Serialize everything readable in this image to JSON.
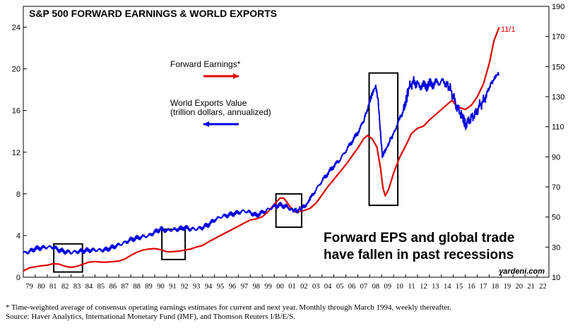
{
  "chart_data": {
    "type": "line",
    "title": "S&P 500 FORWARD EARNINGS & WORLD EXPORTS",
    "x_ticks": [
      "79",
      "80",
      "81",
      "82",
      "83",
      "84",
      "85",
      "86",
      "87",
      "88",
      "89",
      "90",
      "91",
      "92",
      "93",
      "94",
      "95",
      "96",
      "97",
      "98",
      "99",
      "00",
      "01",
      "02",
      "03",
      "04",
      "05",
      "06",
      "07",
      "08",
      "09",
      "10",
      "11",
      "12",
      "13",
      "14",
      "15",
      "16",
      "17",
      "18",
      "19",
      "20",
      "21",
      "22"
    ],
    "xlim": [
      1979,
      2023
    ],
    "left_axis": {
      "ylim": [
        0,
        26
      ],
      "ticks": [
        0,
        4,
        8,
        12,
        16,
        20,
        24
      ]
    },
    "right_axis": {
      "ylim": [
        10,
        190
      ],
      "ticks": [
        10,
        30,
        50,
        70,
        90,
        110,
        130,
        150,
        170,
        190
      ]
    },
    "series": [
      {
        "name": "Forward Earnings*",
        "axis": "left",
        "color": "#e00000",
        "points": [
          [
            1979.0,
            0.6
          ],
          [
            1979.5,
            0.9
          ],
          [
            1980.0,
            1.0
          ],
          [
            1980.5,
            1.1
          ],
          [
            1981.0,
            1.15
          ],
          [
            1981.5,
            1.3
          ],
          [
            1982.0,
            1.25
          ],
          [
            1982.5,
            1.05
          ],
          [
            1983.0,
            0.95
          ],
          [
            1983.5,
            1.05
          ],
          [
            1984.0,
            1.25
          ],
          [
            1984.5,
            1.45
          ],
          [
            1985.0,
            1.5
          ],
          [
            1985.5,
            1.45
          ],
          [
            1986.0,
            1.45
          ],
          [
            1986.5,
            1.5
          ],
          [
            1987.0,
            1.55
          ],
          [
            1987.5,
            1.75
          ],
          [
            1988.0,
            2.1
          ],
          [
            1988.5,
            2.4
          ],
          [
            1989.0,
            2.6
          ],
          [
            1989.5,
            2.7
          ],
          [
            1990.0,
            2.75
          ],
          [
            1990.5,
            2.65
          ],
          [
            1991.0,
            2.45
          ],
          [
            1991.5,
            2.45
          ],
          [
            1992.0,
            2.5
          ],
          [
            1992.5,
            2.6
          ],
          [
            1993.0,
            2.7
          ],
          [
            1993.5,
            2.9
          ],
          [
            1994.0,
            3.05
          ],
          [
            1994.5,
            3.4
          ],
          [
            1995.0,
            3.7
          ],
          [
            1995.5,
            4.0
          ],
          [
            1996.0,
            4.3
          ],
          [
            1996.5,
            4.6
          ],
          [
            1997.0,
            4.9
          ],
          [
            1997.5,
            5.2
          ],
          [
            1998.0,
            5.5
          ],
          [
            1998.5,
            5.6
          ],
          [
            1999.0,
            5.8
          ],
          [
            1999.5,
            6.3
          ],
          [
            2000.0,
            7.0
          ],
          [
            2000.5,
            7.6
          ],
          [
            2000.8,
            7.6
          ],
          [
            2001.0,
            7.3
          ],
          [
            2001.5,
            6.5
          ],
          [
            2001.9,
            6.2
          ],
          [
            2002.2,
            6.35
          ],
          [
            2002.5,
            6.4
          ],
          [
            2003.0,
            6.6
          ],
          [
            2003.5,
            7.1
          ],
          [
            2004.0,
            7.9
          ],
          [
            2004.5,
            8.7
          ],
          [
            2005.0,
            9.4
          ],
          [
            2005.5,
            10.1
          ],
          [
            2006.0,
            10.8
          ],
          [
            2006.5,
            11.6
          ],
          [
            2007.0,
            12.4
          ],
          [
            2007.5,
            13.3
          ],
          [
            2007.8,
            13.6
          ],
          [
            2008.2,
            13.3
          ],
          [
            2008.6,
            12.5
          ],
          [
            2008.9,
            10.5
          ],
          [
            2009.1,
            8.6
          ],
          [
            2009.3,
            7.8
          ],
          [
            2009.6,
            8.5
          ],
          [
            2010.0,
            10.0
          ],
          [
            2010.5,
            11.5
          ],
          [
            2011.0,
            12.6
          ],
          [
            2011.5,
            13.8
          ],
          [
            2012.0,
            14.3
          ],
          [
            2012.5,
            14.5
          ],
          [
            2013.0,
            15.1
          ],
          [
            2013.5,
            15.6
          ],
          [
            2014.0,
            16.1
          ],
          [
            2014.5,
            16.6
          ],
          [
            2014.9,
            17.0
          ],
          [
            2015.2,
            16.5
          ],
          [
            2015.5,
            16.3
          ],
          [
            2016.0,
            16.1
          ],
          [
            2016.5,
            16.5
          ],
          [
            2017.0,
            17.3
          ],
          [
            2017.5,
            18.5
          ],
          [
            2018.0,
            20.5
          ],
          [
            2018.4,
            22.7
          ],
          [
            2018.84,
            24.0
          ]
        ]
      },
      {
        "name": "World Exports Value",
        "axis": "right",
        "color": "#0000e0",
        "points": [
          [
            1979.0,
            26
          ],
          [
            1979.5,
            27
          ],
          [
            1980.0,
            29
          ],
          [
            1980.5,
            29.5
          ],
          [
            1981.0,
            30
          ],
          [
            1981.5,
            30
          ],
          [
            1982.0,
            28
          ],
          [
            1982.5,
            27
          ],
          [
            1983.0,
            26.5
          ],
          [
            1983.5,
            27
          ],
          [
            1984.0,
            27.5
          ],
          [
            1984.5,
            28
          ],
          [
            1985.0,
            28
          ],
          [
            1985.5,
            28
          ],
          [
            1986.0,
            28.5
          ],
          [
            1986.5,
            30
          ],
          [
            1987.0,
            31.5
          ],
          [
            1987.5,
            33
          ],
          [
            1988.0,
            35
          ],
          [
            1988.5,
            36
          ],
          [
            1989.0,
            37
          ],
          [
            1989.5,
            37.5
          ],
          [
            1990.0,
            40
          ],
          [
            1990.5,
            42
          ],
          [
            1991.0,
            41
          ],
          [
            1991.5,
            41.5
          ],
          [
            1992.0,
            42
          ],
          [
            1992.5,
            43
          ],
          [
            1993.0,
            42
          ],
          [
            1993.5,
            42
          ],
          [
            1994.0,
            43
          ],
          [
            1994.5,
            45
          ],
          [
            1995.0,
            48
          ],
          [
            1995.5,
            50
          ],
          [
            1996.0,
            51
          ],
          [
            1996.5,
            52
          ],
          [
            1997.0,
            53
          ],
          [
            1997.5,
            54
          ],
          [
            1998.0,
            53
          ],
          [
            1998.5,
            51
          ],
          [
            1999.0,
            53
          ],
          [
            1999.5,
            55
          ],
          [
            2000.0,
            57
          ],
          [
            2000.5,
            58
          ],
          [
            2001.0,
            57
          ],
          [
            2001.5,
            55
          ],
          [
            2001.9,
            54
          ],
          [
            2002.3,
            56
          ],
          [
            2002.7,
            58
          ],
          [
            2003.0,
            62
          ],
          [
            2003.5,
            68
          ],
          [
            2004.0,
            74
          ],
          [
            2004.5,
            79
          ],
          [
            2005.0,
            84
          ],
          [
            2005.5,
            88
          ],
          [
            2006.0,
            94
          ],
          [
            2006.5,
            100
          ],
          [
            2007.0,
            106
          ],
          [
            2007.5,
            114
          ],
          [
            2007.9,
            124
          ],
          [
            2008.2,
            132
          ],
          [
            2008.5,
            137
          ],
          [
            2008.7,
            128
          ],
          [
            2008.9,
            106
          ],
          [
            2009.05,
            91
          ],
          [
            2009.3,
            94
          ],
          [
            2009.6,
            99
          ],
          [
            2010.0,
            106
          ],
          [
            2010.5,
            115
          ],
          [
            2010.9,
            122
          ],
          [
            2011.2,
            134
          ],
          [
            2011.6,
            140
          ],
          [
            2012.0,
            138
          ],
          [
            2012.5,
            137
          ],
          [
            2013.0,
            138
          ],
          [
            2013.5,
            139
          ],
          [
            2014.0,
            140
          ],
          [
            2014.5,
            139
          ],
          [
            2014.9,
            132
          ],
          [
            2015.3,
            123
          ],
          [
            2015.7,
            118
          ],
          [
            2016.0,
            111
          ],
          [
            2016.4,
            115
          ],
          [
            2016.8,
            118
          ],
          [
            2017.2,
            124
          ],
          [
            2017.6,
            128
          ],
          [
            2018.0,
            136
          ],
          [
            2018.4,
            142
          ],
          [
            2018.84,
            145
          ]
        ]
      }
    ],
    "legend": [
      {
        "label": "Forward Earnings*",
        "color": "#e00000",
        "arrow": "right"
      },
      {
        "label": "World Exports Value",
        "sublabel": "(trillion dollars, annualized)",
        "color": "#0000e0",
        "arrow": "left"
      }
    ],
    "annotations": {
      "date_label": "11/1",
      "headline_line1": "Forward EPS and global trade",
      "headline_line2": "have fallen in past recessions",
      "source_mark": "yardeni.com",
      "recession_boxes": [
        {
          "from": 1981.55,
          "to": 1983.95,
          "y_top": 3.2,
          "y_bottom": 0.5
        },
        {
          "from": 1990.6,
          "to": 1992.55,
          "y_top": 4.6,
          "y_bottom": 1.7
        },
        {
          "from": 2000.15,
          "to": 2002.3,
          "y_top": 8.0,
          "y_bottom": 4.8
        },
        {
          "from": 2007.95,
          "to": 2010.35,
          "y_top": 19.6,
          "y_bottom": 6.9
        }
      ]
    },
    "grid": false
  },
  "footnote_line1": "*  Time-weighted average of consensus operating earnings estimates for current and next year. Monthly through March 1994, weekly thereafter.",
  "footnote_line2": "Source: Haver Analytics, International Monetary Fund (IMF), and Thomson Reuters I/B/E/S."
}
